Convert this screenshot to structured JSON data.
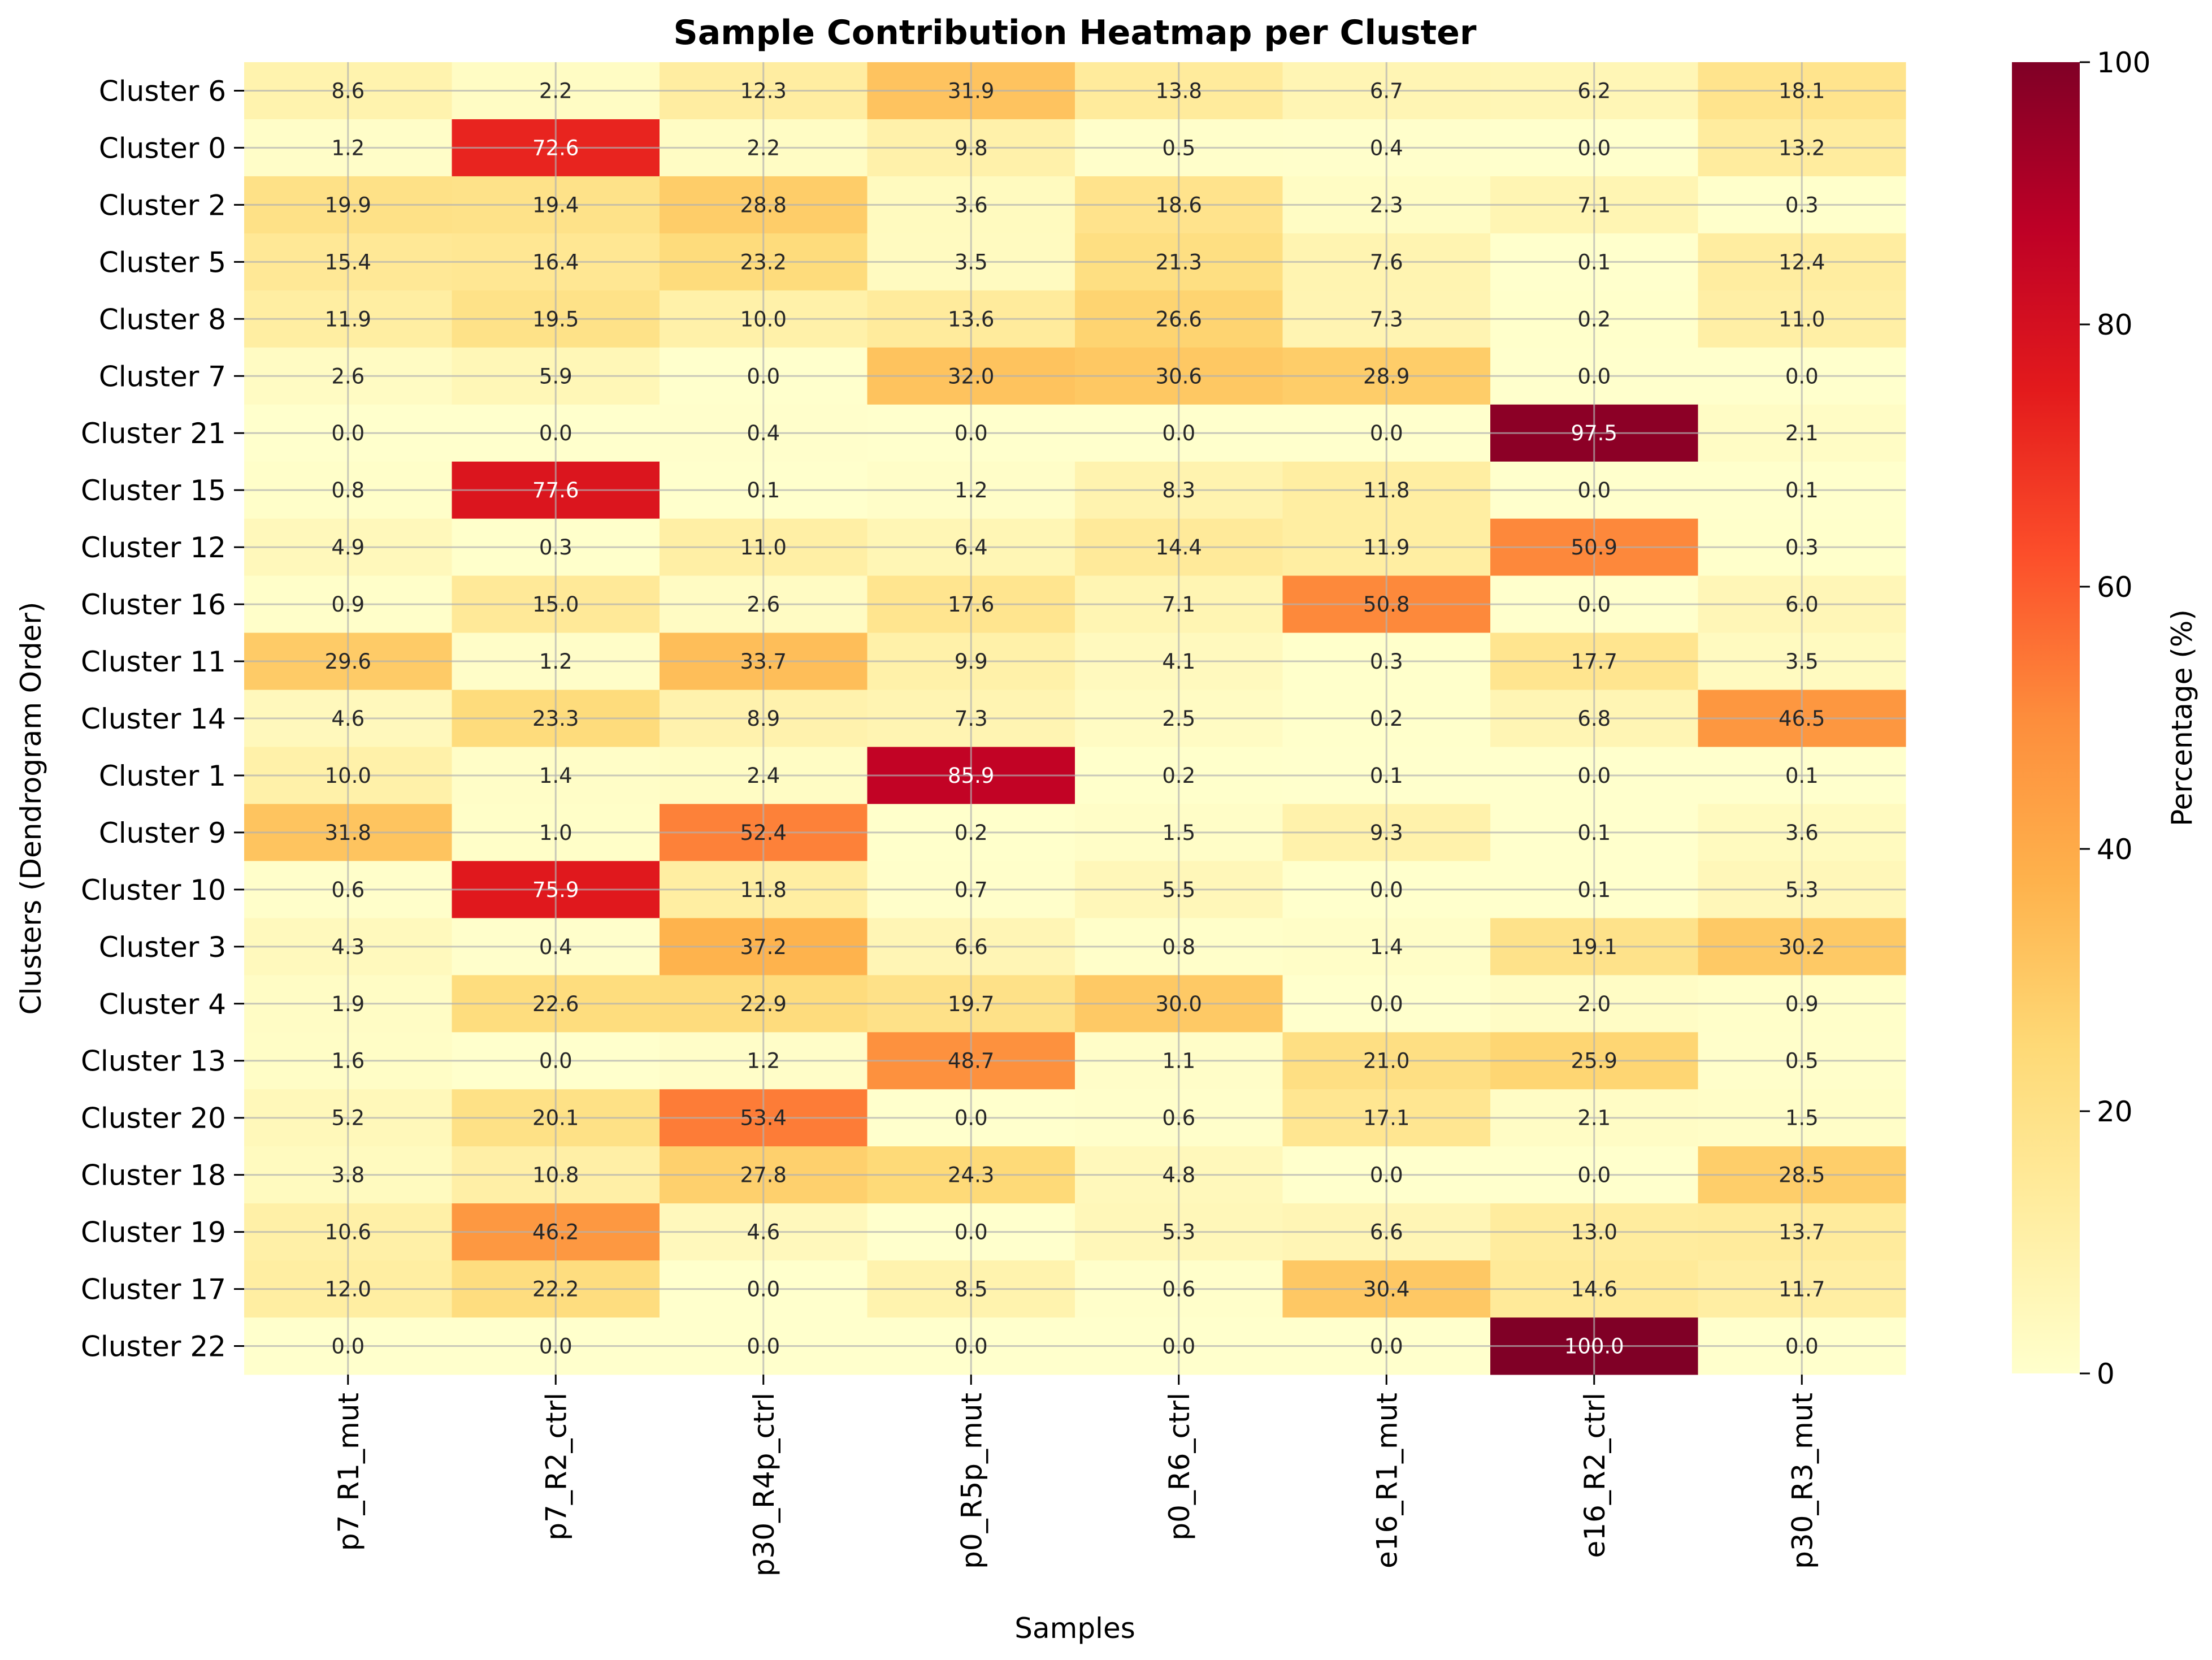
{
  "chart_data": {
    "type": "heatmap",
    "title": "Sample Contribution Heatmap per Cluster",
    "xlabel": "Samples",
    "ylabel": "Clusters (Dendrogram Order)",
    "colorbar_label": "Percentage (%)",
    "colormap": "YlOrRd",
    "vmin": 0,
    "vmax": 100,
    "colorbar_ticks": [
      "0",
      "20",
      "40",
      "60",
      "80",
      "100"
    ],
    "grid": true,
    "columns": [
      "p7_R1_mut",
      "p7_R2_ctrl",
      "p30_R4p_ctrl",
      "p0_R5p_mut",
      "p0_R6_ctrl",
      "e16_R1_mut",
      "e16_R2_ctrl",
      "p30_R3_mut"
    ],
    "rows": [
      "Cluster 6",
      "Cluster 0",
      "Cluster 2",
      "Cluster 5",
      "Cluster 8",
      "Cluster 7",
      "Cluster 21",
      "Cluster 15",
      "Cluster 12",
      "Cluster 16",
      "Cluster 11",
      "Cluster 14",
      "Cluster 1",
      "Cluster 9",
      "Cluster 10",
      "Cluster 3",
      "Cluster 4",
      "Cluster 13",
      "Cluster 20",
      "Cluster 18",
      "Cluster 19",
      "Cluster 17",
      "Cluster 22"
    ],
    "values": [
      [
        8.6,
        2.2,
        12.3,
        31.9,
        13.8,
        6.7,
        6.2,
        18.1
      ],
      [
        1.2,
        72.6,
        2.2,
        9.8,
        0.5,
        0.4,
        0.0,
        13.2
      ],
      [
        19.9,
        19.4,
        28.8,
        3.6,
        18.6,
        2.3,
        7.1,
        0.3
      ],
      [
        15.4,
        16.4,
        23.2,
        3.5,
        21.3,
        7.6,
        0.1,
        12.4
      ],
      [
        11.9,
        19.5,
        10.0,
        13.6,
        26.6,
        7.3,
        0.2,
        11.0
      ],
      [
        2.6,
        5.9,
        0.0,
        32.0,
        30.6,
        28.9,
        0.0,
        0.0
      ],
      [
        0.0,
        0.0,
        0.4,
        0.0,
        0.0,
        0.0,
        97.5,
        2.1
      ],
      [
        0.8,
        77.6,
        0.1,
        1.2,
        8.3,
        11.8,
        0.0,
        0.1
      ],
      [
        4.9,
        0.3,
        11.0,
        6.4,
        14.4,
        11.9,
        50.9,
        0.3
      ],
      [
        0.9,
        15.0,
        2.6,
        17.6,
        7.1,
        50.8,
        0.0,
        6.0
      ],
      [
        29.6,
        1.2,
        33.7,
        9.9,
        4.1,
        0.3,
        17.7,
        3.5
      ],
      [
        4.6,
        23.3,
        8.9,
        7.3,
        2.5,
        0.2,
        6.8,
        46.5
      ],
      [
        10.0,
        1.4,
        2.4,
        85.9,
        0.2,
        0.1,
        0.0,
        0.1
      ],
      [
        31.8,
        1.0,
        52.4,
        0.2,
        1.5,
        9.3,
        0.1,
        3.6
      ],
      [
        0.6,
        75.9,
        11.8,
        0.7,
        5.5,
        0.0,
        0.1,
        5.3
      ],
      [
        4.3,
        0.4,
        37.2,
        6.6,
        0.8,
        1.4,
        19.1,
        30.2
      ],
      [
        1.9,
        22.6,
        22.9,
        19.7,
        30.0,
        0.0,
        2.0,
        0.9
      ],
      [
        1.6,
        0.0,
        1.2,
        48.7,
        1.1,
        21.0,
        25.9,
        0.5
      ],
      [
        5.2,
        20.1,
        53.4,
        0.0,
        0.6,
        17.1,
        2.1,
        1.5
      ],
      [
        3.8,
        10.8,
        27.8,
        24.3,
        4.8,
        0.0,
        0.0,
        28.5
      ],
      [
        10.6,
        46.2,
        4.6,
        0.0,
        5.3,
        6.6,
        13.0,
        13.7
      ],
      [
        12.0,
        22.2,
        0.0,
        8.5,
        0.6,
        30.4,
        14.6,
        11.7
      ],
      [
        0.0,
        0.0,
        0.0,
        0.0,
        0.0,
        0.0,
        100.0,
        0.0
      ]
    ]
  }
}
